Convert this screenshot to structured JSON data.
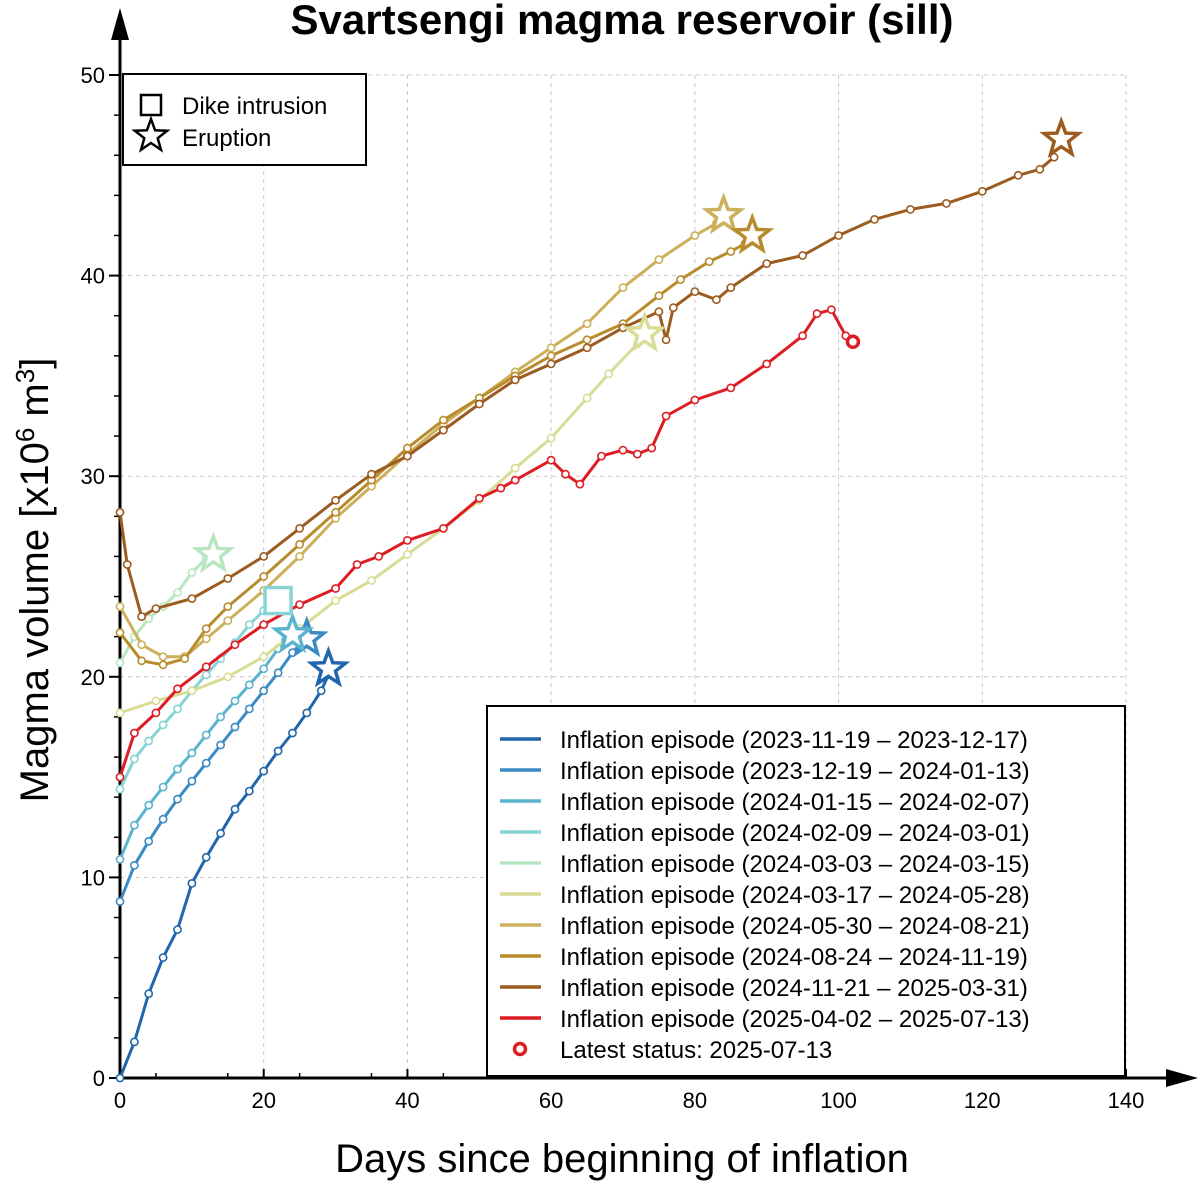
{
  "chart_data": {
    "type": "line",
    "title": "Svartsengi magma reservoir (sill)",
    "xlabel": "Days since beginning of inflation",
    "ylabel": {
      "prefix": "Magma volume [x10",
      "sup1": "6",
      "mid": " m",
      "sup2": "3",
      "suffix": "]"
    },
    "xlim": [
      0,
      140
    ],
    "ylim": [
      0,
      50
    ],
    "xticks": [
      "0",
      "20",
      "40",
      "60",
      "80",
      "100",
      "120",
      "140"
    ],
    "yticks": [
      "0",
      "10",
      "20",
      "30",
      "40",
      "50"
    ],
    "grid": true,
    "marker_legend": {
      "placement": "top-left",
      "items": [
        {
          "symbol": "square",
          "label": "Dike intrusion"
        },
        {
          "symbol": "star",
          "label": "Eruption"
        }
      ]
    },
    "legend": {
      "placement": "bottom-right",
      "latest_label": "Latest status: 2025-07-13"
    },
    "series": [
      {
        "name": "Inflation episode (2023-11-19 – 2023-12-17)",
        "color": "#2166ac",
        "points": [
          [
            0,
            0
          ],
          [
            2,
            1.8
          ],
          [
            4,
            4.2
          ],
          [
            6,
            6
          ],
          [
            8,
            7.4
          ],
          [
            10,
            9.7
          ],
          [
            12,
            11
          ],
          [
            14,
            12.2
          ],
          [
            16,
            13.4
          ],
          [
            18,
            14.3
          ],
          [
            20,
            15.3
          ],
          [
            22,
            16.3
          ],
          [
            24,
            17.2
          ],
          [
            26,
            18.2
          ],
          [
            28,
            19.3
          ],
          [
            29,
            20.1
          ]
        ],
        "end": {
          "x": 29,
          "y": 20.4,
          "type": "eruption"
        }
      },
      {
        "name": "Inflation episode (2023-12-19 – 2024-01-13)",
        "color": "#3a8ac4",
        "points": [
          [
            0,
            8.8
          ],
          [
            2,
            10.6
          ],
          [
            4,
            11.8
          ],
          [
            6,
            12.9
          ],
          [
            8,
            13.9
          ],
          [
            10,
            14.8
          ],
          [
            12,
            15.7
          ],
          [
            14,
            16.6
          ],
          [
            16,
            17.5
          ],
          [
            18,
            18.4
          ],
          [
            20,
            19.3
          ],
          [
            22,
            20.2
          ],
          [
            24,
            21.2
          ],
          [
            25,
            21.6
          ]
        ],
        "end": {
          "x": 26,
          "y": 21.9,
          "type": "eruption"
        }
      },
      {
        "name": "Inflation episode (2024-01-15 – 2024-02-07)",
        "color": "#5ab4cf",
        "points": [
          [
            0,
            10.9
          ],
          [
            2,
            12.6
          ],
          [
            4,
            13.6
          ],
          [
            6,
            14.5
          ],
          [
            8,
            15.4
          ],
          [
            10,
            16.2
          ],
          [
            12,
            17.1
          ],
          [
            14,
            18
          ],
          [
            16,
            18.8
          ],
          [
            18,
            19.6
          ],
          [
            20,
            20.4
          ],
          [
            22,
            21.4
          ],
          [
            23,
            21.8
          ]
        ],
        "end": {
          "x": 24,
          "y": 22.1,
          "type": "eruption"
        }
      },
      {
        "name": "Inflation episode (2024-02-09 – 2024-03-01)",
        "color": "#88d4d4",
        "points": [
          [
            0,
            14.4
          ],
          [
            2,
            15.9
          ],
          [
            4,
            16.8
          ],
          [
            6,
            17.6
          ],
          [
            8,
            18.4
          ],
          [
            10,
            19.3
          ],
          [
            12,
            20.1
          ],
          [
            14,
            20.9
          ],
          [
            16,
            21.7
          ],
          [
            18,
            22.6
          ],
          [
            20,
            23.3
          ],
          [
            21,
            23.6
          ]
        ],
        "end": {
          "x": 22,
          "y": 23.8,
          "type": "dike"
        }
      },
      {
        "name": "Inflation episode (2024-03-03 – 2024-03-15)",
        "color": "#b8e6c0",
        "points": [
          [
            0,
            20.7
          ],
          [
            2,
            22
          ],
          [
            4,
            22.9
          ],
          [
            6,
            23.5
          ],
          [
            8,
            24.2
          ],
          [
            10,
            25.2
          ],
          [
            12,
            25.9
          ]
        ],
        "end": {
          "x": 13,
          "y": 26.1,
          "type": "eruption"
        }
      },
      {
        "name": "Inflation episode (2024-03-17 – 2024-05-28)",
        "color": "#d8dc94",
        "points": [
          [
            0,
            18.2
          ],
          [
            5,
            18.8
          ],
          [
            10,
            19.3
          ],
          [
            15,
            20
          ],
          [
            20,
            21
          ],
          [
            25,
            22.4
          ],
          [
            30,
            23.8
          ],
          [
            35,
            24.8
          ],
          [
            40,
            26.1
          ],
          [
            45,
            27.4
          ],
          [
            50,
            28.8
          ],
          [
            55,
            30.4
          ],
          [
            60,
            31.9
          ],
          [
            65,
            33.9
          ],
          [
            68,
            35.1
          ],
          [
            72,
            36.6
          ]
        ],
        "end": {
          "x": 73,
          "y": 37.1,
          "type": "eruption"
        }
      },
      {
        "name": "Inflation episode (2024-05-30 – 2024-08-21)",
        "color": "#ccb05c",
        "points": [
          [
            0,
            23.5
          ],
          [
            3,
            21.6
          ],
          [
            6,
            21
          ],
          [
            9,
            21
          ],
          [
            12,
            21.9
          ],
          [
            15,
            22.8
          ],
          [
            20,
            24.3
          ],
          [
            25,
            26
          ],
          [
            30,
            27.9
          ],
          [
            35,
            29.5
          ],
          [
            40,
            31.1
          ],
          [
            45,
            32.6
          ],
          [
            50,
            33.9
          ],
          [
            55,
            35.2
          ],
          [
            60,
            36.4
          ],
          [
            65,
            37.6
          ],
          [
            70,
            39.4
          ],
          [
            75,
            40.8
          ],
          [
            80,
            42
          ],
          [
            83,
            42.6
          ]
        ],
        "end": {
          "x": 84,
          "y": 43,
          "type": "eruption"
        }
      },
      {
        "name": "Inflation episode (2024-08-24 – 2024-11-19)",
        "color": "#b88c2c",
        "points": [
          [
            0,
            22.2
          ],
          [
            3,
            20.8
          ],
          [
            6,
            20.6
          ],
          [
            9,
            20.9
          ],
          [
            12,
            22.4
          ],
          [
            15,
            23.5
          ],
          [
            20,
            25
          ],
          [
            25,
            26.6
          ],
          [
            30,
            28.2
          ],
          [
            35,
            29.8
          ],
          [
            40,
            31.4
          ],
          [
            45,
            32.8
          ],
          [
            50,
            33.9
          ],
          [
            55,
            35
          ],
          [
            60,
            36
          ],
          [
            65,
            36.8
          ],
          [
            70,
            37.6
          ],
          [
            75,
            39
          ],
          [
            78,
            39.8
          ],
          [
            82,
            40.7
          ],
          [
            85,
            41.2
          ],
          [
            87,
            41.6
          ]
        ],
        "end": {
          "x": 88,
          "y": 42,
          "type": "eruption"
        }
      },
      {
        "name": "Inflation episode (2024-11-21 – 2025-03-31)",
        "color": "#9c5c20",
        "points": [
          [
            0,
            28.2
          ],
          [
            1,
            25.6
          ],
          [
            3,
            23
          ],
          [
            5,
            23.4
          ],
          [
            10,
            23.9
          ],
          [
            15,
            24.9
          ],
          [
            20,
            26
          ],
          [
            25,
            27.4
          ],
          [
            30,
            28.8
          ],
          [
            35,
            30.1
          ],
          [
            40,
            31
          ],
          [
            45,
            32.3
          ],
          [
            50,
            33.6
          ],
          [
            55,
            34.8
          ],
          [
            60,
            35.6
          ],
          [
            65,
            36.4
          ],
          [
            70,
            37.4
          ],
          [
            75,
            38.2
          ],
          [
            76,
            36.8
          ],
          [
            77,
            38.4
          ],
          [
            80,
            39.2
          ],
          [
            83,
            38.8
          ],
          [
            85,
            39.4
          ],
          [
            90,
            40.6
          ],
          [
            95,
            41
          ],
          [
            100,
            42
          ],
          [
            105,
            42.8
          ],
          [
            110,
            43.3
          ],
          [
            115,
            43.6
          ],
          [
            120,
            44.2
          ],
          [
            125,
            45
          ],
          [
            128,
            45.3
          ],
          [
            130,
            45.9
          ]
        ],
        "end": {
          "x": 131,
          "y": 46.8,
          "type": "eruption"
        }
      },
      {
        "name": "Inflation episode (2025-04-02 – 2025-07-13)",
        "color": "#dd1c24",
        "points": [
          [
            0,
            15
          ],
          [
            2,
            17.2
          ],
          [
            5,
            18.2
          ],
          [
            8,
            19.4
          ],
          [
            12,
            20.5
          ],
          [
            16,
            21.6
          ],
          [
            20,
            22.6
          ],
          [
            25,
            23.6
          ],
          [
            30,
            24.4
          ],
          [
            33,
            25.6
          ],
          [
            36,
            26
          ],
          [
            40,
            26.8
          ],
          [
            45,
            27.4
          ],
          [
            50,
            28.9
          ],
          [
            53,
            29.4
          ],
          [
            55,
            29.8
          ],
          [
            60,
            30.8
          ],
          [
            62,
            30.1
          ],
          [
            64,
            29.6
          ],
          [
            67,
            31
          ],
          [
            70,
            31.3
          ],
          [
            72,
            31.1
          ],
          [
            74,
            31.4
          ],
          [
            76,
            33
          ],
          [
            80,
            33.8
          ],
          [
            85,
            34.4
          ],
          [
            90,
            35.6
          ],
          [
            95,
            37
          ],
          [
            97,
            38.1
          ],
          [
            99,
            38.3
          ],
          [
            101,
            37
          ]
        ],
        "end": {
          "x": 102,
          "y": 36.7,
          "type": "latest"
        }
      }
    ]
  }
}
